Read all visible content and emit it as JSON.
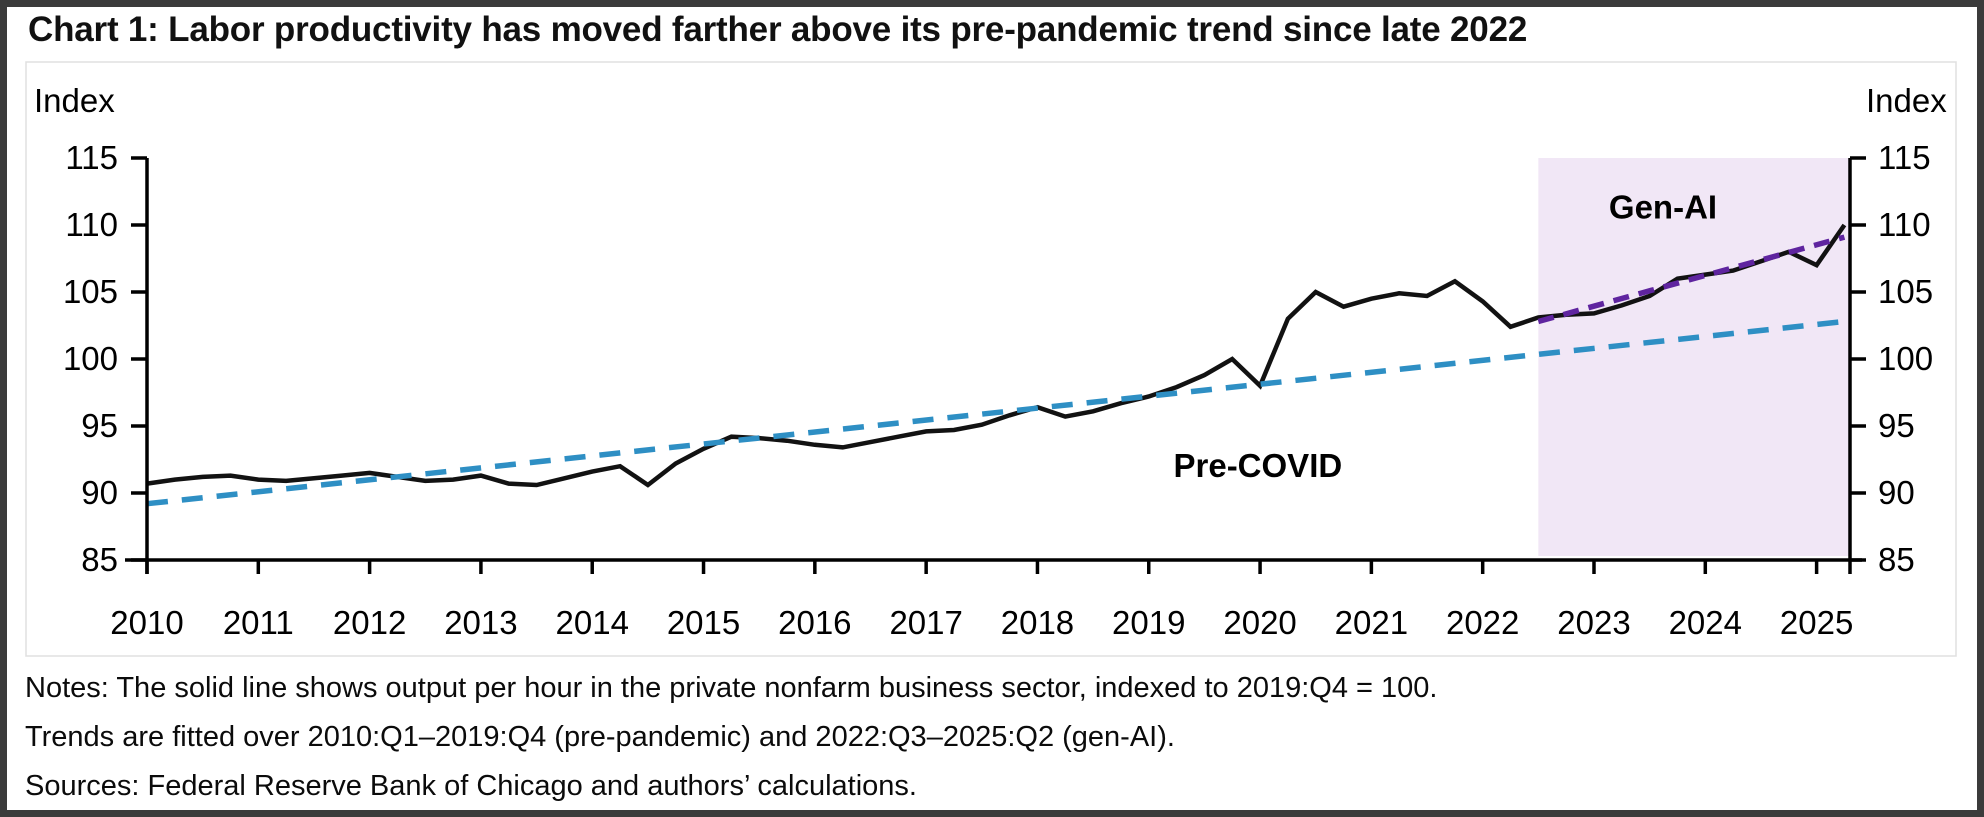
{
  "figure": {
    "title": "Chart 1: Labor productivity has moved farther above its pre-pandemic trend since late 2022",
    "notes": [
      "Notes: The solid line shows output per hour in the private nonfarm business sector, indexed to 2019:Q4 = 100.",
      "Trends are fitted over 2010:Q1–2019:Q4 (pre-pandemic) and 2022:Q3–2025:Q2 (gen-AI).",
      "Sources: Federal Reserve Bank of Chicago and authors’ calculations."
    ]
  },
  "chart_data": {
    "type": "line",
    "title": "Chart 1: Labor productivity has moved farther above its pre-pandemic trend since late 2022",
    "left_axis_label": "Index",
    "right_axis_label": "Index",
    "ylim": [
      85,
      115
    ],
    "y_ticks": [
      85,
      90,
      95,
      100,
      105,
      110,
      115
    ],
    "xlim": [
      2010,
      2025.3
    ],
    "x_ticks": [
      2010,
      2011,
      2012,
      2013,
      2014,
      2015,
      2016,
      2017,
      2018,
      2019,
      2020,
      2021,
      2022,
      2023,
      2024,
      2025
    ],
    "grid": "off",
    "shaded_region": {
      "name": "gen-ai-period",
      "x_start": 2022.5,
      "x_end": 2025.3,
      "color": "#F1E7F6"
    },
    "series": [
      {
        "name": "labor-productivity",
        "style": "solid",
        "color": "#121212",
        "x_start": 2010.0,
        "x_step": 0.25,
        "values": [
          90.7,
          91.0,
          91.2,
          91.3,
          91.0,
          90.9,
          91.1,
          91.3,
          91.5,
          91.2,
          90.9,
          91.0,
          91.3,
          90.7,
          90.6,
          91.1,
          91.6,
          92.0,
          90.6,
          92.2,
          93.3,
          94.2,
          94.1,
          93.9,
          93.6,
          93.4,
          93.8,
          94.2,
          94.6,
          94.7,
          95.1,
          95.8,
          96.4,
          95.7,
          96.1,
          96.7,
          97.2,
          97.9,
          98.8,
          100.0,
          98.0,
          103.0,
          105.0,
          103.9,
          104.5,
          104.9,
          104.7,
          105.8,
          104.3,
          102.4,
          103.1,
          103.3,
          103.4,
          104.0,
          104.7,
          106.0,
          106.3,
          106.6,
          107.3,
          108.0,
          107.0,
          110.0
        ]
      },
      {
        "name": "pre-covid-trend",
        "style": "dashed",
        "color": "#2E8FC4",
        "label": "Pre-COVID",
        "label_color": "#3C95C8",
        "x": [
          2010.0,
          2025.25
        ],
        "values": [
          89.2,
          102.8
        ],
        "label_pos": {
          "x": 2019.98,
          "y": 92.0
        }
      },
      {
        "name": "gen-ai-trend",
        "style": "dashed",
        "color": "#5F249F",
        "label": "Gen-AI",
        "label_color": "#7D3AB5",
        "x": [
          2022.5,
          2025.25
        ],
        "values": [
          102.8,
          109.1
        ],
        "label_pos": {
          "x": 2023.62,
          "y": 111.3
        }
      }
    ]
  }
}
